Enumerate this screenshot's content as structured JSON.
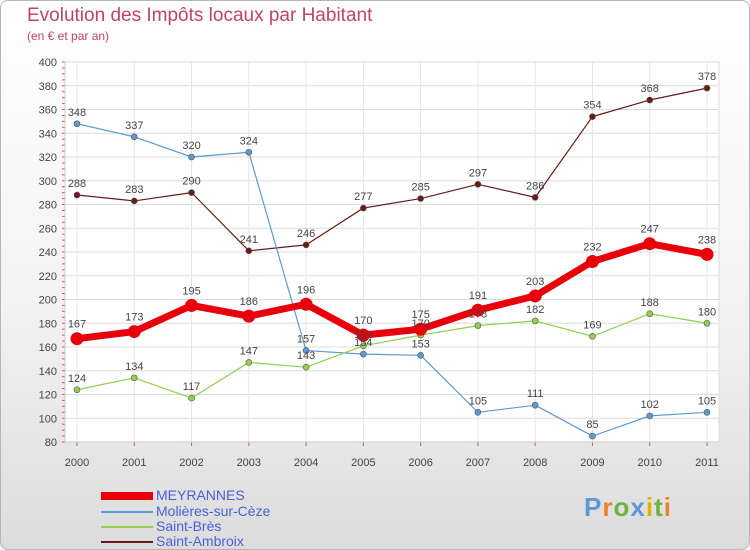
{
  "chart_data": {
    "type": "line",
    "title": "Evolution des Impôts locaux par Habitant",
    "subtitle": "(en € et par an)",
    "xlabel": "",
    "ylabel": "",
    "ylim": [
      80,
      400
    ],
    "yticks": [
      "80",
      "100",
      "120",
      "140",
      "160",
      "180",
      "200",
      "220",
      "240",
      "260",
      "280",
      "300",
      "320",
      "340",
      "360",
      "380",
      "400"
    ],
    "categories": [
      "2000",
      "2001",
      "2002",
      "2003",
      "2004",
      "2005",
      "2006",
      "2007",
      "2008",
      "2009",
      "2010",
      "2011"
    ],
    "series": [
      {
        "name": "MEYRANNES",
        "color": "#e8000b",
        "values": [
          167,
          173,
          195,
          186,
          196,
          170,
          175,
          191,
          203,
          232,
          247,
          238
        ]
      },
      {
        "name": "Molières-sur-Cèze",
        "color": "#5b9bd5",
        "values": [
          348,
          337,
          320,
          324,
          157,
          154,
          153,
          105,
          111,
          85,
          102,
          105
        ]
      },
      {
        "name": "Saint-Brès",
        "color": "#92d050",
        "values": [
          124,
          134,
          117,
          147,
          143,
          161,
          170,
          178,
          182,
          169,
          188,
          180
        ]
      },
      {
        "name": "Saint-Ambroix",
        "color": "#6b1a1a",
        "values": [
          288,
          283,
          290,
          241,
          246,
          277,
          285,
          297,
          286,
          354,
          368,
          378
        ]
      }
    ],
    "grid": true,
    "legend": "bottom-left"
  },
  "logo": {
    "text": "Proxiti"
  }
}
